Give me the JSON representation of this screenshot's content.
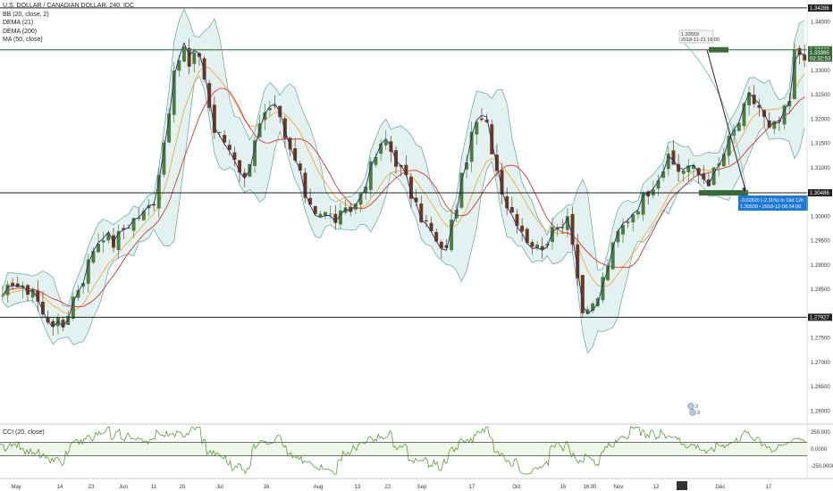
{
  "legend": {
    "symbol": "U.S. DOLLAR / CANADIAN DOLLAR, 240, IDC",
    "indicators": [
      "BB (20, close, 2)",
      "DEMA (21)",
      "DEMA (200)",
      "MA (50, close)"
    ],
    "cci": "CCI (20, close)"
  },
  "colors": {
    "candle_up": "#4d7d3c",
    "candle_down": "#6b3a1c",
    "bb_line": "#5fa3a0",
    "bb_fill": "#e3f2f1",
    "dema21": "#2a2a7a",
    "dema200": "#f0a030",
    "ma50": "#d02020",
    "cci_line": "#4d8a2a",
    "level_line": "#222222",
    "target_line": "#4a7a4a",
    "badge_blue": "#1e78d7",
    "badge_green": "#3a6a3a"
  },
  "chart_data": {
    "type": "candlestick",
    "title": "U.S. DOLLAR / CANADIAN DOLLAR, 240, IDC",
    "x_ticks": [
      "May",
      "14",
      "23",
      "Jun",
      "11",
      "20",
      "Jul",
      "16",
      "Aug",
      "13",
      "22",
      "Sep",
      "17",
      "Oct",
      "15",
      "16:00",
      "Nov",
      "12",
      "21",
      "Dec",
      "17"
    ],
    "y_ticks": [
      1.34,
      1.335,
      1.33,
      1.325,
      1.32,
      1.315,
      1.31,
      1.305,
      1.3,
      1.295,
      1.29,
      1.285,
      1.28,
      1.275,
      1.27,
      1.265,
      1.26
    ],
    "y_tick_labels": [
      "1.34000",
      "1.33500",
      "1.33000",
      "1.32500",
      "1.32000",
      "1.31500",
      "1.31000",
      "1.30500",
      "1.30000",
      "1.29500",
      "1.29000",
      "1.28500",
      "1.28000",
      "1.27500",
      "1.27000",
      "1.26500",
      "1.26000"
    ],
    "ylim": [
      1.2575,
      1.3445
    ],
    "close_path": [
      [
        0,
        1.2825
      ],
      [
        2,
        1.287
      ],
      [
        4,
        1.2845
      ],
      [
        6,
        1.2855
      ],
      [
        8,
        1.2795
      ],
      [
        10,
        1.2785
      ],
      [
        12,
        1.2775
      ],
      [
        14,
        1.2835
      ],
      [
        16,
        1.2875
      ],
      [
        18,
        1.2935
      ],
      [
        20,
        1.2965
      ],
      [
        22,
        1.2945
      ],
      [
        24,
        1.2975
      ],
      [
        26,
        1.2995
      ],
      [
        28,
        1.3005
      ],
      [
        30,
        1.3035
      ],
      [
        31,
        1.3095
      ],
      [
        32,
        1.3155
      ],
      [
        33,
        1.3225
      ],
      [
        34,
        1.3285
      ],
      [
        35,
        1.3325
      ],
      [
        36,
        1.3345
      ],
      [
        37,
        1.3305
      ],
      [
        38,
        1.3325
      ],
      [
        39,
        1.3335
      ],
      [
        40,
        1.3285
      ],
      [
        41,
        1.3225
      ],
      [
        42,
        1.3175
      ],
      [
        44,
        1.3155
      ],
      [
        46,
        1.3125
      ],
      [
        48,
        1.3075
      ],
      [
        50,
        1.3165
      ],
      [
        52,
        1.3205
      ],
      [
        54,
        1.3215
      ],
      [
        55,
        1.3195
      ],
      [
        56,
        1.3155
      ],
      [
        58,
        1.3115
      ],
      [
        60,
        1.3045
      ],
      [
        62,
        1.3015
      ],
      [
        64,
        1.3005
      ],
      [
        66,
        1.2995
      ],
      [
        68,
        1.3005
      ],
      [
        70,
        1.3025
      ],
      [
        72,
        1.3075
      ],
      [
        74,
        1.3125
      ],
      [
        76,
        1.3155
      ],
      [
        78,
        1.3115
      ],
      [
        80,
        1.3075
      ],
      [
        82,
        1.3015
      ],
      [
        84,
        1.2985
      ],
      [
        86,
        1.2945
      ],
      [
        87,
        1.2925
      ],
      [
        88,
        1.2945
      ],
      [
        90,
        1.3025
      ],
      [
        92,
        1.3125
      ],
      [
        94,
        1.3195
      ],
      [
        96,
        1.3185
      ],
      [
        98,
        1.3095
      ],
      [
        100,
        1.3025
      ],
      [
        102,
        1.2995
      ],
      [
        104,
        1.2955
      ],
      [
        106,
        1.2935
      ],
      [
        108,
        1.2955
      ],
      [
        110,
        1.2975
      ],
      [
        112,
        1.3005
      ],
      [
        113,
        1.2955
      ],
      [
        114,
        1.2875
      ],
      [
        115,
        1.2805
      ],
      [
        116,
        1.2795
      ],
      [
        118,
        1.2835
      ],
      [
        120,
        1.2905
      ],
      [
        122,
        1.2965
      ],
      [
        124,
        1.2995
      ],
      [
        126,
        1.3025
      ],
      [
        128,
        1.3055
      ],
      [
        130,
        1.3085
      ],
      [
        132,
        1.3115
      ],
      [
        134,
        1.3095
      ],
      [
        136,
        1.3105
      ],
      [
        138,
        1.3085
      ],
      [
        140,
        1.3075
      ],
      [
        142,
        1.3105
      ],
      [
        144,
        1.3155
      ],
      [
        146,
        1.3195
      ],
      [
        148,
        1.3245
      ],
      [
        150,
        1.3225
      ],
      [
        152,
        1.3175
      ],
      [
        154,
        1.3195
      ],
      [
        156,
        1.3235
      ],
      [
        157,
        1.3335
      ]
    ],
    "levels": [
      {
        "price": 1.34286,
        "label": "1.34286"
      },
      {
        "price": 1.33427,
        "label": "1.33427"
      },
      {
        "price": 1.30486,
        "label": "1.30486"
      },
      {
        "price": 1.27927,
        "label": "1.27927"
      }
    ],
    "last_price": {
      "label": "1.33365",
      "countdown": "02:32:53"
    },
    "projection": {
      "high_label": "1.33559",
      "high_date": "2018-11-21 16:00",
      "change": "-0.02820 (-2.11%) in 16d 12h",
      "target": "1.30539",
      "target_date": "2018-12-08 04:00"
    },
    "events": [
      "2",
      "2"
    ],
    "cci": {
      "y_ticks": [
        250,
        0,
        -250
      ],
      "y_tick_labels": [
        "250.000",
        "0.0000",
        "-250.0000"
      ],
      "ylim": [
        -420,
        330
      ]
    }
  }
}
